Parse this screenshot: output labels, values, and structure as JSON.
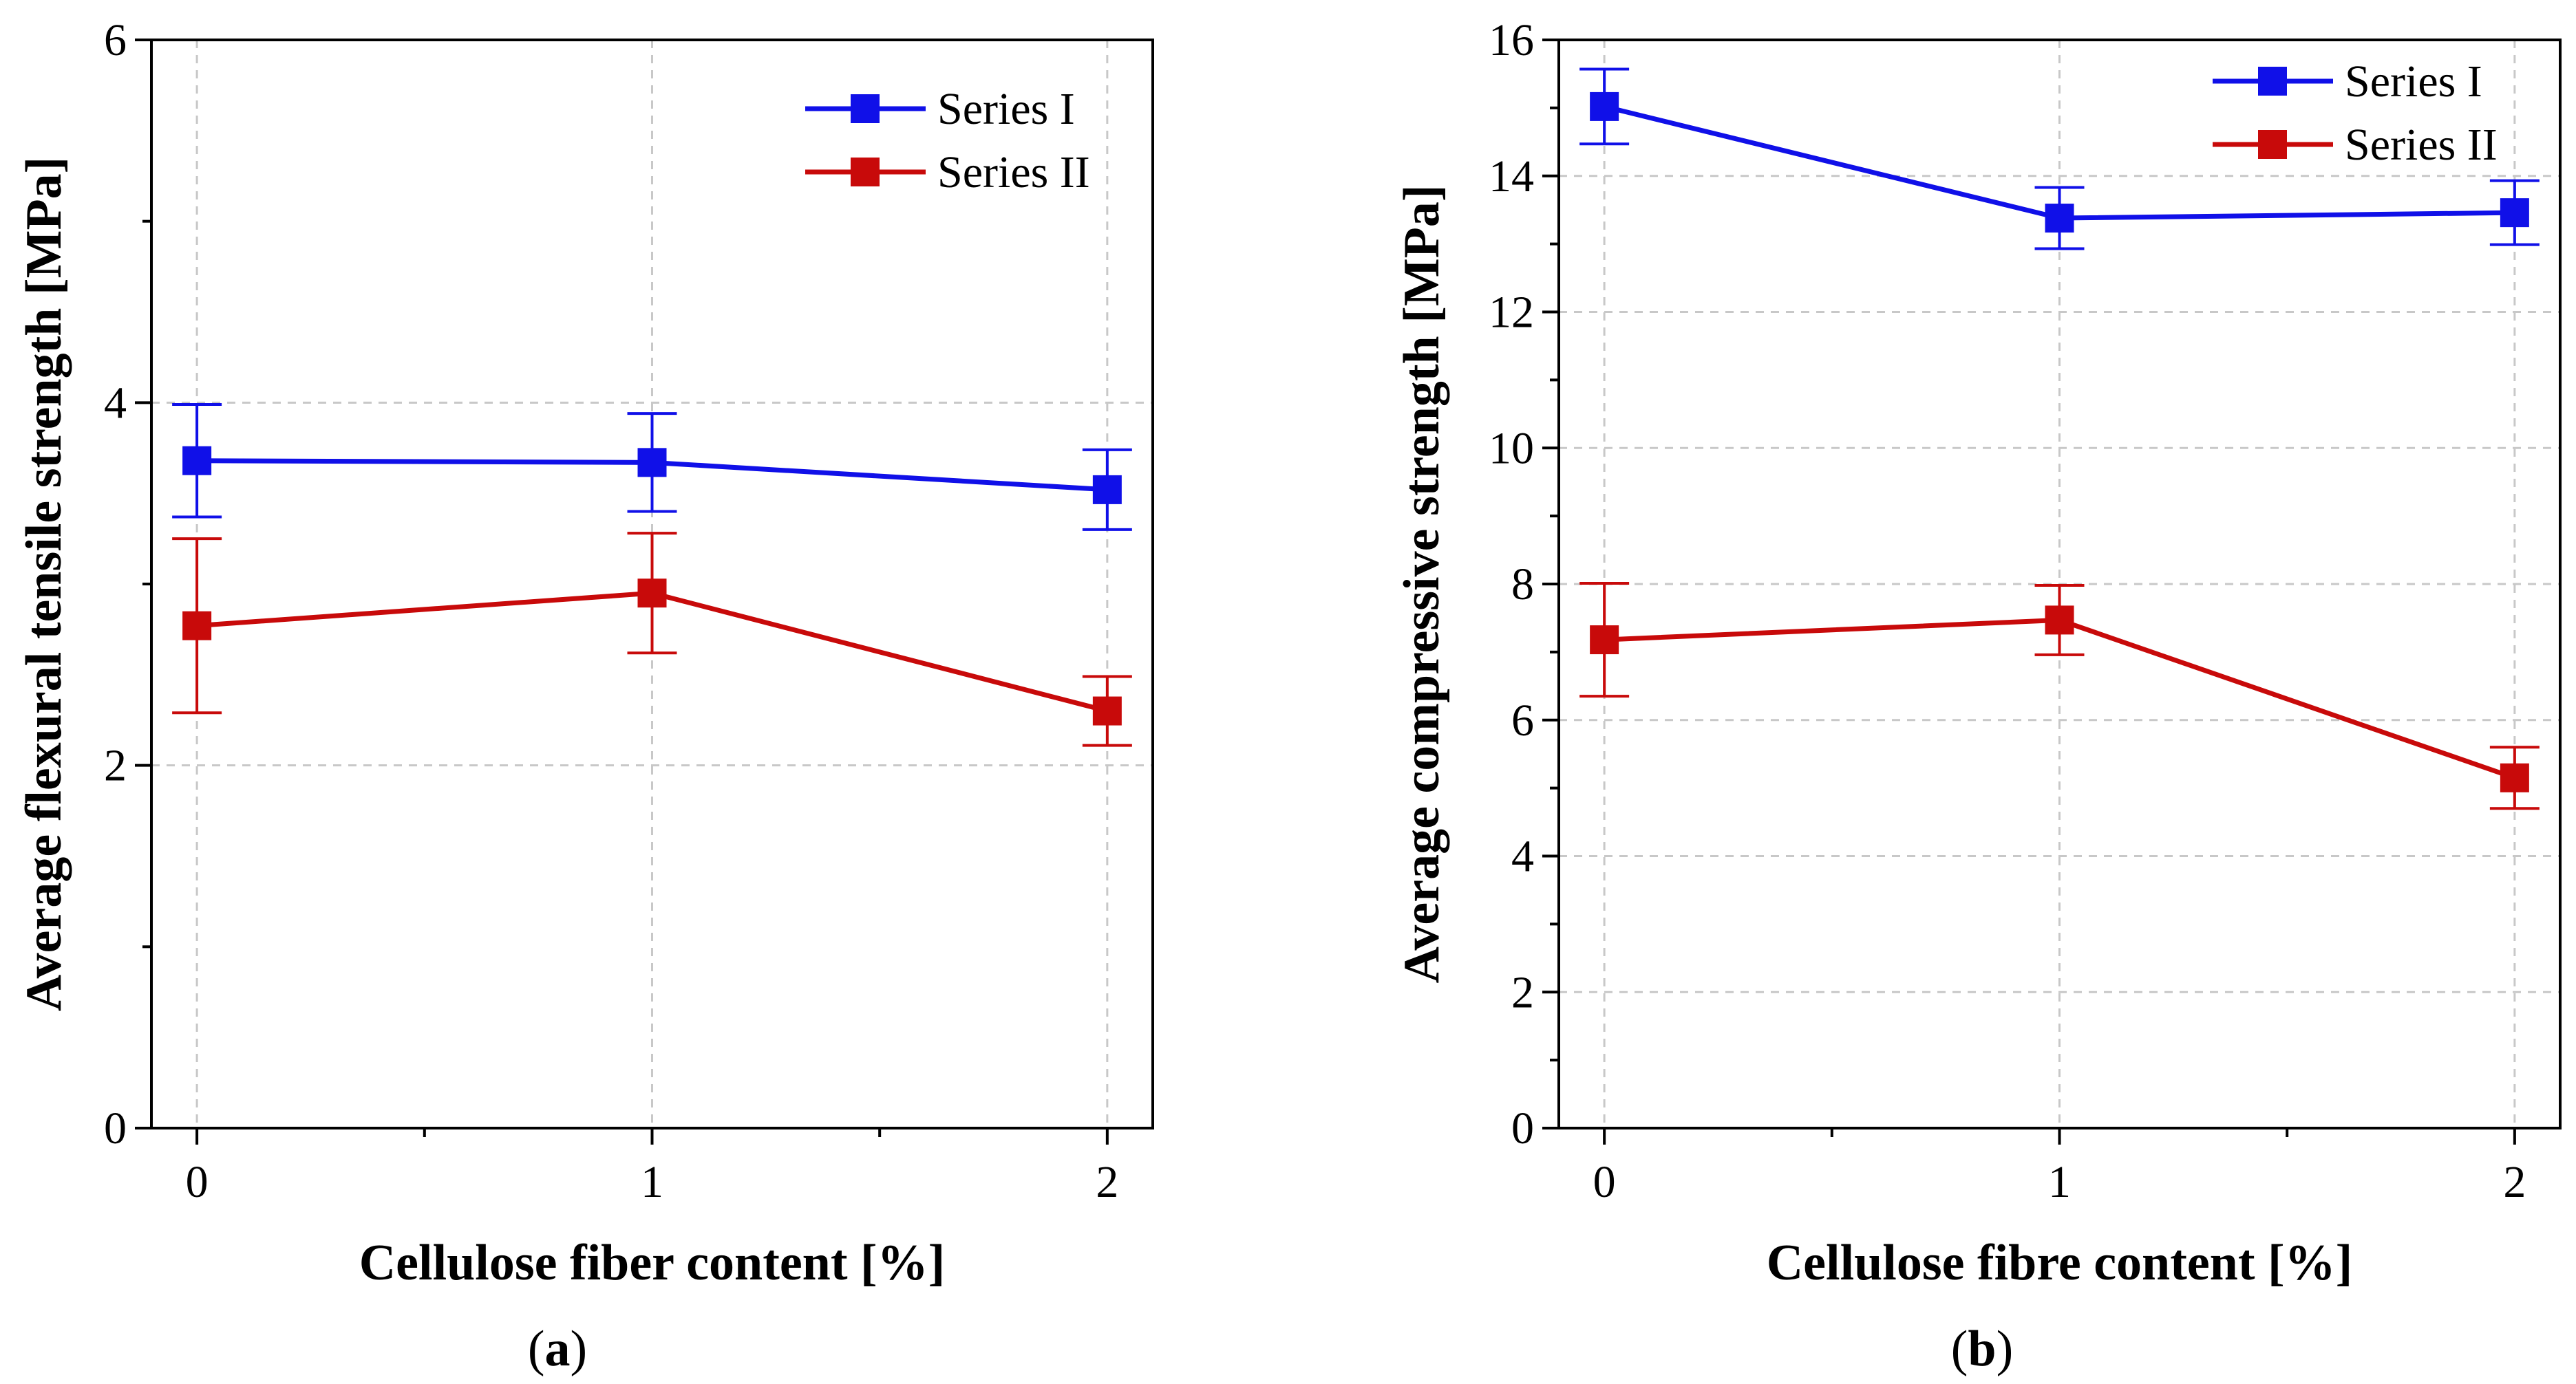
{
  "colors": {
    "series_1": "#1010e8",
    "series_2": "#c80a0a"
  },
  "chart_data": [
    {
      "type": "line",
      "panel_label": "(a)",
      "panel_letter": "a",
      "title": "",
      "xlabel": "Cellulose fiber content [%]",
      "ylabel": "Average flexural tensile strength [MPa]",
      "x": [
        0,
        1,
        2
      ],
      "x_ticks": [
        "0",
        "1",
        "2"
      ],
      "xlim": [
        -0.1,
        2.1
      ],
      "y_ticks": [
        "0",
        "2",
        "4",
        "6"
      ],
      "ylim": [
        0,
        6
      ],
      "legend_position": "top-right",
      "series": [
        {
          "name": "Series I",
          "values": [
            3.68,
            3.67,
            3.52
          ],
          "error": [
            0.31,
            0.27,
            0.22
          ]
        },
        {
          "name": "Series II",
          "values": [
            2.77,
            2.95,
            2.3
          ],
          "error": [
            0.48,
            0.33,
            0.19
          ]
        }
      ]
    },
    {
      "type": "line",
      "panel_label": "(b)",
      "panel_letter": "b",
      "title": "",
      "xlabel": "Cellulose fibre content [%]",
      "ylabel": "Average compressive strength [MPa]",
      "x": [
        0,
        1,
        2
      ],
      "x_ticks": [
        "0",
        "1",
        "2"
      ],
      "xlim": [
        -0.1,
        2.1
      ],
      "y_ticks": [
        "0",
        "2",
        "4",
        "6",
        "8",
        "10",
        "12",
        "14",
        "16"
      ],
      "ylim": [
        0,
        16
      ],
      "legend_position": "top-right",
      "series": [
        {
          "name": "Series I",
          "values": [
            15.02,
            13.38,
            13.46
          ],
          "error": [
            0.55,
            0.45,
            0.47
          ]
        },
        {
          "name": "Series II",
          "values": [
            7.18,
            7.47,
            5.15
          ],
          "error": [
            0.83,
            0.51,
            0.45
          ]
        }
      ]
    }
  ]
}
